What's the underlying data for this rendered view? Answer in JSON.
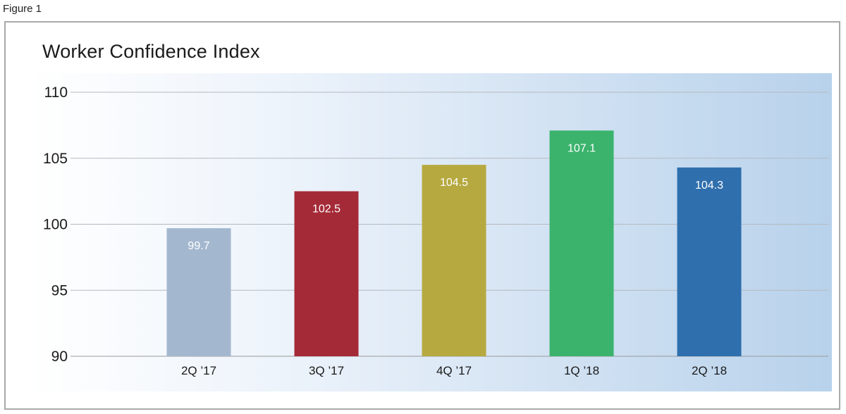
{
  "figure_label": "Figure 1",
  "chart_data": {
    "type": "bar",
    "title": "Worker Confidence Index",
    "xlabel": "",
    "ylabel": "",
    "categories": [
      "2Q ’17",
      "3Q ’17",
      "4Q ’17",
      "1Q ’18",
      "2Q ’18"
    ],
    "values": [
      99.7,
      102.5,
      104.5,
      107.1,
      104.3
    ],
    "value_labels": [
      "99.7",
      "102.5",
      "104.5",
      "107.1",
      "104.3"
    ],
    "bar_colors": [
      "#a3b8cf",
      "#a52a37",
      "#b6a940",
      "#3bb36d",
      "#2f6fad"
    ],
    "ylim": [
      90,
      110
    ],
    "yticks": [
      90,
      95,
      100,
      105,
      110
    ],
    "grid": true,
    "legend": "none"
  }
}
